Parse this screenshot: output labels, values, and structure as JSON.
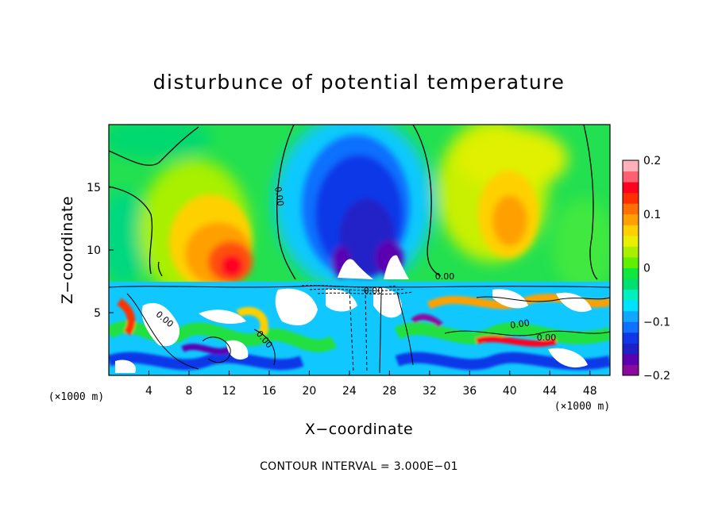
{
  "chart_data": {
    "type": "heatmap",
    "title": "disturbunce of potential temperature",
    "xlabel": "X−coordinate",
    "ylabel": "Z−coordinate",
    "x_unit": "(×1000 m)",
    "y_unit": "(×1000 m)",
    "xlim": [
      0,
      50
    ],
    "ylim": [
      0,
      20
    ],
    "x_ticks": [
      4,
      8,
      12,
      16,
      20,
      24,
      28,
      32,
      36,
      40,
      44,
      48
    ],
    "y_ticks": [
      5,
      10,
      15
    ],
    "colorbar": {
      "range": [
        -0.2,
        0.2
      ],
      "ticks": [
        {
          "value": 0.2,
          "label": "0.2"
        },
        {
          "value": 0.1,
          "label": "0.1"
        },
        {
          "value": 0.0,
          "label": "0"
        },
        {
          "value": -0.1,
          "label": "−0.1"
        },
        {
          "value": -0.2,
          "label": "−0.2"
        }
      ],
      "colors": [
        "#8b0a9e",
        "#5a00b0",
        "#2020c8",
        "#1038e8",
        "#1070ff",
        "#10a8ff",
        "#00e0ff",
        "#00f0c0",
        "#00e070",
        "#10e840",
        "#60f000",
        "#a8f000",
        "#e8f000",
        "#ffd000",
        "#ffa000",
        "#ff7000",
        "#ff3000",
        "#ff0020",
        "#ff6070",
        "#ffb0b8"
      ]
    },
    "contour_labels": [
      "0.00",
      "0.00",
      "0.00",
      "0.00",
      "0.00",
      "0.00",
      "0.00"
    ],
    "contour_interval_note": "CONTOUR INTERVAL = 3.000E−01",
    "features": [
      {
        "kind": "warm_anomaly",
        "x": 11,
        "z": 10.5,
        "peak": 0.18
      },
      {
        "kind": "cold_anomaly",
        "x": 24.5,
        "z": 12.5,
        "peak": -0.2
      },
      {
        "kind": "warm_anomaly",
        "x": 40,
        "z": 12.5,
        "peak": 0.12
      },
      {
        "kind": "turbulent_layer",
        "z_top": 7.5
      }
    ]
  }
}
